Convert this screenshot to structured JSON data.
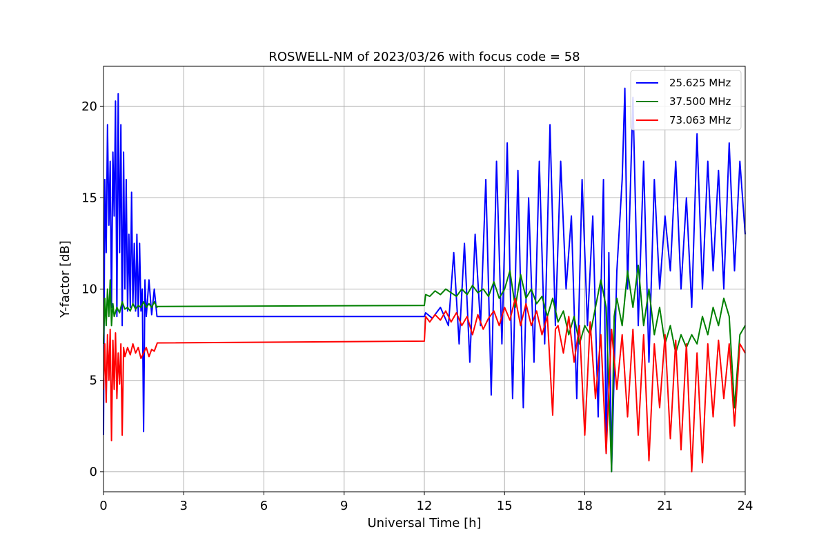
{
  "chart_data": {
    "type": "line",
    "title": "ROSWELL-NM of 2023/03/26 with focus code = 58",
    "xlabel": "Universal Time [h]",
    "ylabel": "Y-factor [dB]",
    "xlim": [
      0,
      24
    ],
    "ylim": [
      -1.1,
      22.2
    ],
    "xticks": [
      "0",
      "3",
      "6",
      "9",
      "12",
      "15",
      "18",
      "21",
      "24"
    ],
    "yticks": [
      "0",
      "5",
      "10",
      "15",
      "20"
    ],
    "grid": true,
    "legend_position": "top-right",
    "series": [
      {
        "name": "25.625 MHz",
        "color": "#0000ff",
        "x": [
          0.0,
          0.05,
          0.1,
          0.15,
          0.2,
          0.25,
          0.3,
          0.35,
          0.4,
          0.45,
          0.5,
          0.55,
          0.6,
          0.65,
          0.7,
          0.75,
          0.8,
          0.85,
          0.9,
          0.95,
          1.0,
          1.05,
          1.1,
          1.15,
          1.2,
          1.25,
          1.3,
          1.35,
          1.4,
          1.45,
          1.5,
          1.55,
          1.6,
          1.7,
          1.8,
          1.9,
          2.0,
          2.01,
          12.0,
          12.05,
          12.3,
          12.6,
          12.9,
          13.1,
          13.3,
          13.5,
          13.7,
          13.9,
          14.1,
          14.3,
          14.5,
          14.7,
          14.9,
          15.1,
          15.3,
          15.5,
          15.7,
          15.9,
          16.1,
          16.3,
          16.5,
          16.7,
          16.9,
          17.1,
          17.3,
          17.5,
          17.7,
          17.9,
          18.1,
          18.3,
          18.5,
          18.7,
          18.8,
          18.9,
          19.0,
          19.2,
          19.4,
          19.5,
          19.6,
          19.8,
          20.0,
          20.2,
          20.4,
          20.6,
          20.8,
          21.0,
          21.2,
          21.4,
          21.6,
          21.8,
          22.0,
          22.2,
          22.4,
          22.6,
          22.8,
          23.0,
          23.2,
          23.4,
          23.6,
          23.8,
          24.0
        ],
        "y": [
          2.0,
          16.0,
          12.0,
          19.0,
          13.5,
          17.0,
          9.0,
          17.5,
          14.0,
          20.3,
          8.5,
          20.7,
          12.0,
          19.0,
          8.0,
          17.5,
          10.0,
          16.0,
          8.8,
          13.0,
          9.0,
          15.3,
          9.2,
          12.5,
          8.8,
          13.0,
          8.5,
          12.5,
          8.8,
          10.0,
          2.2,
          10.5,
          8.5,
          10.5,
          8.6,
          10.0,
          8.5,
          8.5,
          8.5,
          8.7,
          8.4,
          9.0,
          8.0,
          12.0,
          7.0,
          12.5,
          6.0,
          13.0,
          8.0,
          16.0,
          4.2,
          17.0,
          7.0,
          18.0,
          4.0,
          16.5,
          3.5,
          15.0,
          6.0,
          17.0,
          7.0,
          19.0,
          8.0,
          17.0,
          10.0,
          14.0,
          4.0,
          16.0,
          8.0,
          14.0,
          3.0,
          16.0,
          1.0,
          12.0,
          0.0,
          11.0,
          16.0,
          21.0,
          10.0,
          20.5,
          8.0,
          17.0,
          6.0,
          16.0,
          10.0,
          14.0,
          11.0,
          17.0,
          10.0,
          15.0,
          9.0,
          18.5,
          10.0,
          17.0,
          11.0,
          16.5,
          10.0,
          18.0,
          11.0,
          17.0,
          13.0
        ]
      },
      {
        "name": "37.500 MHz",
        "color": "#008000",
        "x": [
          0.0,
          0.05,
          0.1,
          0.15,
          0.2,
          0.25,
          0.3,
          0.35,
          0.4,
          0.5,
          0.6,
          0.7,
          0.8,
          0.9,
          1.0,
          1.1,
          1.2,
          1.3,
          1.4,
          1.5,
          1.6,
          1.7,
          1.8,
          1.9,
          2.0,
          2.01,
          12.0,
          12.05,
          12.2,
          12.4,
          12.6,
          12.8,
          13.0,
          13.2,
          13.4,
          13.6,
          13.8,
          14.0,
          14.2,
          14.4,
          14.6,
          14.8,
          15.0,
          15.2,
          15.4,
          15.6,
          15.8,
          16.0,
          16.2,
          16.4,
          16.6,
          16.8,
          17.0,
          17.2,
          17.4,
          17.6,
          17.8,
          18.0,
          18.2,
          18.4,
          18.6,
          18.8,
          19.0,
          19.1,
          19.2,
          19.4,
          19.6,
          19.8,
          20.0,
          20.2,
          20.4,
          20.6,
          20.8,
          21.0,
          21.2,
          21.4,
          21.6,
          21.8,
          22.0,
          22.2,
          22.4,
          22.6,
          22.8,
          23.0,
          23.2,
          23.4,
          23.6,
          23.8,
          24.0
        ],
        "y": [
          7.0,
          9.5,
          8.0,
          10.0,
          8.5,
          10.5,
          8.0,
          9.2,
          8.5,
          9.0,
          8.7,
          9.3,
          8.9,
          9.0,
          8.8,
          9.2,
          8.9,
          9.1,
          9.0,
          9.3,
          9.0,
          9.2,
          9.0,
          9.3,
          9.0,
          9.05,
          9.1,
          9.7,
          9.6,
          9.9,
          9.7,
          10.0,
          9.8,
          9.6,
          10.0,
          9.7,
          10.2,
          9.8,
          10.0,
          9.6,
          10.4,
          9.5,
          10.0,
          11.0,
          9.0,
          10.8,
          9.5,
          10.0,
          9.2,
          9.6,
          8.5,
          9.5,
          8.2,
          8.8,
          7.5,
          8.5,
          7.0,
          8.0,
          7.5,
          9.0,
          10.5,
          9.0,
          0.0,
          8.5,
          9.5,
          8.0,
          11.0,
          9.0,
          11.3,
          8.0,
          10.0,
          7.5,
          9.0,
          7.0,
          8.0,
          6.5,
          7.5,
          6.8,
          7.5,
          7.0,
          8.5,
          7.5,
          9.0,
          8.0,
          9.5,
          8.5,
          3.5,
          7.5,
          8.0
        ]
      },
      {
        "name": "73.063 MHz",
        "color": "#ff0000",
        "x": [
          0.0,
          0.05,
          0.1,
          0.15,
          0.2,
          0.25,
          0.3,
          0.35,
          0.4,
          0.45,
          0.5,
          0.55,
          0.6,
          0.65,
          0.7,
          0.75,
          0.8,
          0.9,
          1.0,
          1.1,
          1.2,
          1.3,
          1.4,
          1.5,
          1.6,
          1.7,
          1.8,
          1.9,
          2.0,
          2.01,
          12.0,
          12.05,
          12.2,
          12.4,
          12.6,
          12.8,
          13.0,
          13.2,
          13.4,
          13.6,
          13.8,
          14.0,
          14.2,
          14.4,
          14.6,
          14.8,
          15.0,
          15.2,
          15.4,
          15.6,
          15.8,
          16.0,
          16.2,
          16.4,
          16.6,
          16.8,
          16.9,
          17.0,
          17.2,
          17.4,
          17.6,
          17.8,
          18.0,
          18.2,
          18.4,
          18.6,
          18.8,
          19.0,
          19.2,
          19.4,
          19.6,
          19.8,
          20.0,
          20.2,
          20.4,
          20.6,
          20.8,
          21.0,
          21.2,
          21.4,
          21.6,
          21.8,
          22.0,
          22.2,
          22.4,
          22.6,
          22.8,
          23.0,
          23.2,
          23.4,
          23.6,
          23.8,
          24.0
        ],
        "y": [
          4.5,
          7.0,
          3.8,
          7.5,
          5.0,
          7.8,
          1.7,
          7.2,
          4.5,
          7.6,
          4.0,
          6.5,
          4.8,
          7.0,
          2.0,
          6.8,
          6.3,
          6.8,
          6.4,
          7.0,
          6.5,
          6.8,
          6.2,
          6.5,
          6.8,
          6.3,
          6.7,
          6.6,
          7.0,
          7.05,
          7.15,
          8.5,
          8.2,
          8.6,
          8.3,
          8.8,
          8.2,
          8.7,
          8.0,
          8.5,
          7.5,
          8.6,
          7.8,
          8.4,
          8.8,
          8.0,
          9.0,
          8.3,
          9.5,
          8.0,
          9.2,
          8.0,
          8.8,
          7.5,
          8.5,
          3.1,
          7.8,
          8.0,
          6.5,
          8.5,
          6.0,
          8.0,
          2.0,
          8.2,
          4.0,
          7.5,
          1.0,
          7.8,
          4.5,
          7.5,
          3.0,
          7.8,
          2.0,
          7.5,
          0.6,
          7.0,
          3.5,
          7.5,
          1.8,
          7.2,
          1.2,
          7.0,
          0.0,
          6.5,
          0.5,
          7.0,
          3.0,
          7.2,
          4.0,
          7.0,
          2.5,
          7.0,
          6.5
        ]
      }
    ]
  }
}
